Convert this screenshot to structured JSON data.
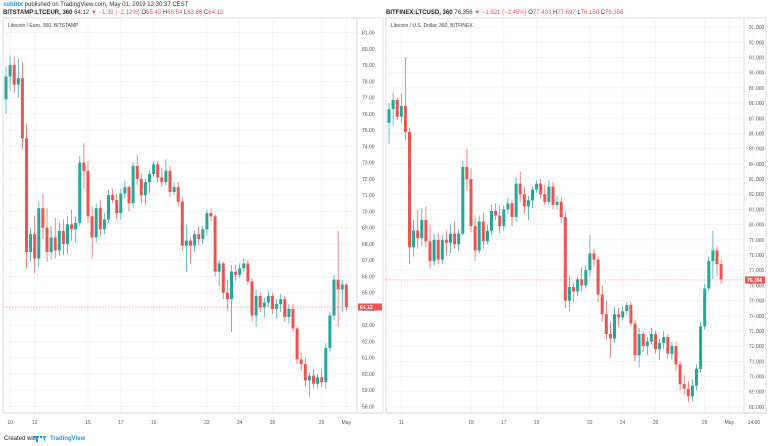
{
  "header": {
    "author": "subbot",
    "published": "published on TradingView.com, May 01, 2019 12:30:37 CEST"
  },
  "colors": {
    "up": "#26a69a",
    "down": "#ef5350",
    "grid": "#f0f3fa",
    "panel_border": "#d0d4dc"
  },
  "chart_data": [
    {
      "type": "candlestick",
      "header": {
        "symbol": "BITSTAMP:LTCEUR, 360",
        "last": "64.12",
        "arrow": "▼",
        "change": "−1.39 (−2.12%)",
        "o_label": "O",
        "o": "65.43",
        "h_label": "H",
        "h": "65.54",
        "l_label": "L",
        "l": "63.86",
        "c_label": "C",
        "c": "64.12"
      },
      "title": "Litecoin / Euro, 360, BITSTAMP",
      "ylim": [
        57.6,
        81.9
      ],
      "y_ticks": [
        "58.00",
        "59.00",
        "60.00",
        "61.00",
        "62.00",
        "63.00",
        "64.00",
        "65.00",
        "66.00",
        "67.00",
        "68.00",
        "69.00",
        "70.00",
        "71.00",
        "72.00",
        "73.00",
        "74.00",
        "75.00",
        "76.00",
        "77.00",
        "78.00",
        "79.00",
        "80.00",
        "81.00"
      ],
      "x_ticks": [
        {
          "label": "10",
          "i": 1
        },
        {
          "label": "12",
          "i": 7
        },
        {
          "label": "15",
          "i": 20
        },
        {
          "label": "17",
          "i": 28
        },
        {
          "label": "19",
          "i": 36
        },
        {
          "label": "22",
          "i": 49
        },
        {
          "label": "24",
          "i": 57
        },
        {
          "label": "26",
          "i": 65
        },
        {
          "label": "29",
          "i": 77
        },
        {
          "label": "May",
          "i": 83
        }
      ],
      "price_tag": {
        "value": 64.12,
        "label": "64.12"
      },
      "candles": [
        [
          76.9,
          78.9,
          76.0,
          78.3
        ],
        [
          78.3,
          79.6,
          77.4,
          79.0
        ],
        [
          79.0,
          79.5,
          77.3,
          77.8
        ],
        [
          77.8,
          79.4,
          77.0,
          78.2
        ],
        [
          78.2,
          79.2,
          73.8,
          74.5
        ],
        [
          74.5,
          75.4,
          66.5,
          67.5
        ],
        [
          67.5,
          69.0,
          66.9,
          68.6
        ],
        [
          68.6,
          69.7,
          66.2,
          67.1
        ],
        [
          67.1,
          70.6,
          66.6,
          70.2
        ],
        [
          70.2,
          71.1,
          68.3,
          69.0
        ],
        [
          69.0,
          70.2,
          66.9,
          67.5
        ],
        [
          67.5,
          69.1,
          67.0,
          68.4
        ],
        [
          68.4,
          69.6,
          67.1,
          67.6
        ],
        [
          67.6,
          69.3,
          67.3,
          68.8
        ],
        [
          68.8,
          69.5,
          67.3,
          68.0
        ],
        [
          68.0,
          69.7,
          67.4,
          69.2
        ],
        [
          69.2,
          70.1,
          68.2,
          68.9
        ],
        [
          68.9,
          69.7,
          68.1,
          69.3
        ],
        [
          69.3,
          73.4,
          69.1,
          73.0
        ],
        [
          73.0,
          74.2,
          71.4,
          72.5
        ],
        [
          72.5,
          73.1,
          69.3,
          69.7
        ],
        [
          69.7,
          70.3,
          67.1,
          68.4
        ],
        [
          68.4,
          70.5,
          68.1,
          70.2
        ],
        [
          70.2,
          70.7,
          68.5,
          68.9
        ],
        [
          68.9,
          69.9,
          68.6,
          69.5
        ],
        [
          69.5,
          71.3,
          69.3,
          71.0
        ],
        [
          71.0,
          71.4,
          70.5,
          70.7
        ],
        [
          70.7,
          71.1,
          69.5,
          69.9
        ],
        [
          69.9,
          71.4,
          69.5,
          71.1
        ],
        [
          71.1,
          71.9,
          70.8,
          71.5
        ],
        [
          71.5,
          71.6,
          70.0,
          70.5
        ],
        [
          70.5,
          73.0,
          70.2,
          72.8
        ],
        [
          72.8,
          73.5,
          71.6,
          72.0
        ],
        [
          72.0,
          72.3,
          70.5,
          71.0
        ],
        [
          71.0,
          72.0,
          70.4,
          71.8
        ],
        [
          71.8,
          72.5,
          71.1,
          72.3
        ],
        [
          72.3,
          73.1,
          72.1,
          72.9
        ],
        [
          72.9,
          73.1,
          71.8,
          72.1
        ],
        [
          72.1,
          72.7,
          71.5,
          71.8
        ],
        [
          71.8,
          73.2,
          71.6,
          72.5
        ],
        [
          72.5,
          72.8,
          70.9,
          71.2
        ],
        [
          71.2,
          71.8,
          71.0,
          71.5
        ],
        [
          71.5,
          71.8,
          70.3,
          70.6
        ],
        [
          70.6,
          70.9,
          67.6,
          67.9
        ],
        [
          67.9,
          69.2,
          66.3,
          68.2
        ],
        [
          68.2,
          68.4,
          66.8,
          67.9
        ],
        [
          67.9,
          68.8,
          67.5,
          68.6
        ],
        [
          68.6,
          69.1,
          67.9,
          68.3
        ],
        [
          68.3,
          69.1,
          68.0,
          68.9
        ],
        [
          68.9,
          70.1,
          68.5,
          69.9
        ],
        [
          69.9,
          70.2,
          69.4,
          69.7
        ],
        [
          69.7,
          69.8,
          66.0,
          66.3
        ],
        [
          66.3,
          67.0,
          65.4,
          66.8
        ],
        [
          66.8,
          66.9,
          64.6,
          65.0
        ],
        [
          65.0,
          65.8,
          63.9,
          64.6
        ],
        [
          64.6,
          66.7,
          62.6,
          66.3
        ],
        [
          66.3,
          66.7,
          65.7,
          66.1
        ],
        [
          66.1,
          66.8,
          65.9,
          66.5
        ],
        [
          66.5,
          67.1,
          66.3,
          66.8
        ],
        [
          66.8,
          67.0,
          65.5,
          65.7
        ],
        [
          65.7,
          65.9,
          63.2,
          63.6
        ],
        [
          63.6,
          65.2,
          62.9,
          64.8
        ],
        [
          64.8,
          65.0,
          63.8,
          64.1
        ],
        [
          64.1,
          64.7,
          63.5,
          64.4
        ],
        [
          64.4,
          65.1,
          64.1,
          64.8
        ],
        [
          64.8,
          65.0,
          63.7,
          64.0
        ],
        [
          64.0,
          64.6,
          63.4,
          64.3
        ],
        [
          64.3,
          64.9,
          63.8,
          64.6
        ],
        [
          64.6,
          64.8,
          63.2,
          63.5
        ],
        [
          63.5,
          64.3,
          63.1,
          64.0
        ],
        [
          64.0,
          64.3,
          62.6,
          62.8
        ],
        [
          62.8,
          62.9,
          60.6,
          60.9
        ],
        [
          60.9,
          61.3,
          60.2,
          60.6
        ],
        [
          60.6,
          61.0,
          59.2,
          59.6
        ],
        [
          59.6,
          60.1,
          58.6,
          59.9
        ],
        [
          59.9,
          60.3,
          59.1,
          59.4
        ],
        [
          59.4,
          60.0,
          59.1,
          59.8
        ],
        [
          59.8,
          60.3,
          59.2,
          59.5
        ],
        [
          59.5,
          61.9,
          59.1,
          61.6
        ],
        [
          61.6,
          63.8,
          61.4,
          63.6
        ],
        [
          63.6,
          66.1,
          63.3,
          65.8
        ],
        [
          65.8,
          68.8,
          62.9,
          65.2
        ],
        [
          65.2,
          65.8,
          63.8,
          65.5
        ],
        [
          65.5,
          65.6,
          63.9,
          64.1
        ]
      ]
    },
    {
      "type": "candlestick",
      "header": {
        "symbol": "BITFINEX:LTCUSD, 360",
        "last": "76.356",
        "arrow": "▼",
        "change": "−1.921 (−2.45%)",
        "o_label": "O",
        "o": "77.403",
        "h_label": "H",
        "h": "77.697",
        "l_label": "L",
        "l": "76.150",
        "c_label": "C",
        "c": "76.356"
      },
      "title": "Litecoin / U.S. Dollar, 360, BITFINEX",
      "ylim": [
        67.6,
        93.6
      ],
      "y_ticks": [
        "68.000",
        "69.000",
        "70.000",
        "71.000",
        "72.000",
        "73.000",
        "74.000",
        "75.000",
        "76.000",
        "77.000",
        "78.000",
        "79.000",
        "80.000",
        "81.000",
        "82.000",
        "83.000",
        "84.000",
        "85.000",
        "86.000",
        "87.000",
        "88.000",
        "89.000",
        "90.000",
        "91.000",
        "92.000",
        "93.000"
      ],
      "x_ticks": [
        {
          "label": "11",
          "i": 3
        },
        {
          "label": "15",
          "i": 20
        },
        {
          "label": "17",
          "i": 28
        },
        {
          "label": "19",
          "i": 36
        },
        {
          "label": "22",
          "i": 49
        },
        {
          "label": "24",
          "i": 57
        },
        {
          "label": "26",
          "i": 65
        },
        {
          "label": "29",
          "i": 77
        },
        {
          "label": "May",
          "i": 83
        },
        {
          "label": "14:00",
          "i": 89
        }
      ],
      "price_tag": {
        "value": 76.356,
        "label": "76.356"
      },
      "candles": [
        [
          86.7,
          88.0,
          85.3,
          87.6
        ],
        [
          87.6,
          88.7,
          86.5,
          88.2
        ],
        [
          88.2,
          88.4,
          86.9,
          87.1
        ],
        [
          87.1,
          88.6,
          86.7,
          87.8
        ],
        [
          87.8,
          91.0,
          85.6,
          86.1
        ],
        [
          86.1,
          86.4,
          77.4,
          78.5
        ],
        [
          78.5,
          80.3,
          77.9,
          79.6
        ],
        [
          79.6,
          81.0,
          78.4,
          79.1
        ],
        [
          79.1,
          81.1,
          78.6,
          80.3
        ],
        [
          80.3,
          81.2,
          78.5,
          78.9
        ],
        [
          78.9,
          80.0,
          77.1,
          77.6
        ],
        [
          77.6,
          79.4,
          77.3,
          79.0
        ],
        [
          79.0,
          79.4,
          77.4,
          77.7
        ],
        [
          77.7,
          79.3,
          77.4,
          79.0
        ],
        [
          79.0,
          79.6,
          78.0,
          78.8
        ],
        [
          78.8,
          80.0,
          78.1,
          79.4
        ],
        [
          79.4,
          80.2,
          78.4,
          78.7
        ],
        [
          78.7,
          79.7,
          78.3,
          79.4
        ],
        [
          79.4,
          84.2,
          79.3,
          83.8
        ],
        [
          83.8,
          85.0,
          82.2,
          83.0
        ],
        [
          83.0,
          83.7,
          79.5,
          79.9
        ],
        [
          79.9,
          80.6,
          77.6,
          78.3
        ],
        [
          78.3,
          80.6,
          78.1,
          80.2
        ],
        [
          80.2,
          80.8,
          78.4,
          78.9
        ],
        [
          78.9,
          80.0,
          78.7,
          79.6
        ],
        [
          79.6,
          81.3,
          79.3,
          80.9
        ],
        [
          80.9,
          81.4,
          80.3,
          80.6
        ],
        [
          80.6,
          81.2,
          79.4,
          79.9
        ],
        [
          79.9,
          81.3,
          79.6,
          81.0
        ],
        [
          81.0,
          81.8,
          80.7,
          81.4
        ],
        [
          81.4,
          81.6,
          79.9,
          80.5
        ],
        [
          80.5,
          83.1,
          80.2,
          82.7
        ],
        [
          82.7,
          83.5,
          81.5,
          82.0
        ],
        [
          82.0,
          82.5,
          80.7,
          81.2
        ],
        [
          81.2,
          81.9,
          80.3,
          81.6
        ],
        [
          81.6,
          82.5,
          81.1,
          82.3
        ],
        [
          82.3,
          82.9,
          82.1,
          82.7
        ],
        [
          82.7,
          83.0,
          81.7,
          82.0
        ],
        [
          82.0,
          82.6,
          81.3,
          81.5
        ],
        [
          81.5,
          82.9,
          81.3,
          82.5
        ],
        [
          82.5,
          82.8,
          81.0,
          81.3
        ],
        [
          81.3,
          81.9,
          81.0,
          81.5
        ],
        [
          81.5,
          81.8,
          80.1,
          80.5
        ],
        [
          80.5,
          80.9,
          74.5,
          75.0
        ],
        [
          75.0,
          76.6,
          74.3,
          75.9
        ],
        [
          75.9,
          76.2,
          74.9,
          75.6
        ],
        [
          75.6,
          76.6,
          75.3,
          76.4
        ],
        [
          76.4,
          77.2,
          75.6,
          76.0
        ],
        [
          76.0,
          77.3,
          75.8,
          77.0
        ],
        [
          77.0,
          79.3,
          76.6,
          78.1
        ],
        [
          78.1,
          78.4,
          77.2,
          77.7
        ],
        [
          77.7,
          77.9,
          74.9,
          75.4
        ],
        [
          75.4,
          76.0,
          73.6,
          74.1
        ],
        [
          74.1,
          75.0,
          72.4,
          72.8
        ],
        [
          72.8,
          73.6,
          71.2,
          72.5
        ],
        [
          72.5,
          74.6,
          72.2,
          74.1
        ],
        [
          74.1,
          74.5,
          73.3,
          73.9
        ],
        [
          73.9,
          74.6,
          73.7,
          74.3
        ],
        [
          74.3,
          74.9,
          74.1,
          74.7
        ],
        [
          74.7,
          74.9,
          73.3,
          73.5
        ],
        [
          73.5,
          73.7,
          71.0,
          71.4
        ],
        [
          71.4,
          73.2,
          70.6,
          72.8
        ],
        [
          72.8,
          73.0,
          71.6,
          72.0
        ],
        [
          72.0,
          72.6,
          71.4,
          72.3
        ],
        [
          72.3,
          73.2,
          72.1,
          72.8
        ],
        [
          72.8,
          73.0,
          71.5,
          71.8
        ],
        [
          71.8,
          72.5,
          71.1,
          72.2
        ],
        [
          72.2,
          73.0,
          71.8,
          72.6
        ],
        [
          72.6,
          72.8,
          71.2,
          71.5
        ],
        [
          71.5,
          72.3,
          71.1,
          72.0
        ],
        [
          72.0,
          72.3,
          70.4,
          70.8
        ],
        [
          70.8,
          71.0,
          69.1,
          69.5
        ],
        [
          69.5,
          70.1,
          68.8,
          69.2
        ],
        [
          69.2,
          69.7,
          68.3,
          68.7
        ],
        [
          68.7,
          69.8,
          68.4,
          69.4
        ],
        [
          69.4,
          70.8,
          69.1,
          70.5
        ],
        [
          70.5,
          73.6,
          70.3,
          73.3
        ],
        [
          73.3,
          76.1,
          73.1,
          75.8
        ],
        [
          75.8,
          77.9,
          75.6,
          77.6
        ],
        [
          77.6,
          79.6,
          76.4,
          78.3
        ],
        [
          78.3,
          78.6,
          76.6,
          77.4
        ],
        [
          77.4,
          77.7,
          76.1,
          76.4
        ]
      ]
    }
  ],
  "footer": {
    "created_with": "Created with",
    "brand": "TradingView"
  }
}
